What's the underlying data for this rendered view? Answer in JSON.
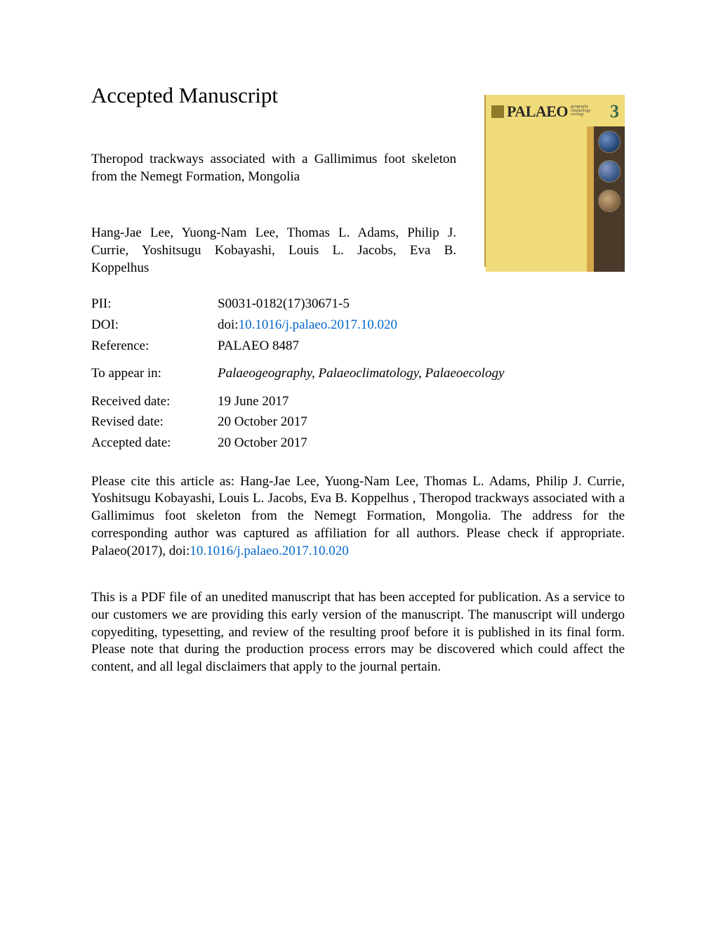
{
  "heading": "Accepted Manuscript",
  "article": {
    "title": "Theropod trackways associated with a Gallimimus foot skeleton from the Nemegt Formation, Mongolia",
    "authors": "Hang-Jae Lee, Yuong-Nam Lee, Thomas L. Adams, Philip J. Currie, Yoshitsugu Kobayashi, Louis L. Jacobs, Eva B. Koppelhus"
  },
  "cover": {
    "journal_label": "PALAEO",
    "sub1": "geography",
    "sub2": "climatology",
    "sub3": "ecology",
    "issue_number": "3"
  },
  "meta": {
    "pii_label": "PII:",
    "pii_value": "S0031-0182(17)30671-5",
    "doi_label": "DOI:",
    "doi_prefix": "doi:",
    "doi_link": "10.1016/j.palaeo.2017.10.020",
    "reference_label": "Reference:",
    "reference_value": "PALAEO 8487",
    "appear_label": "To appear in:",
    "appear_value": "Palaeogeography, Palaeoclimatology, Palaeoecology",
    "received_label": "Received date:",
    "received_value": "19 June 2017",
    "revised_label": "Revised date:",
    "revised_value": "20 October 2017",
    "accepted_label": "Accepted date:",
    "accepted_value": "20 October 2017"
  },
  "citation": {
    "prefix": "Please cite this article as: Hang-Jae Lee, Yuong-Nam Lee, Thomas L. Adams, Philip J. Currie, Yoshitsugu Kobayashi, Louis L. Jacobs, Eva B. Koppelhus , Theropod trackways associated with a Gallimimus foot skeleton from the Nemegt Formation, Mongolia. The address for the corresponding author was captured as affiliation for all authors. Please check if appropriate. Palaeo(2017), doi:",
    "doi_link": "10.1016/j.palaeo.2017.10.020"
  },
  "disclaimer": "This is a PDF file of an unedited manuscript that has been accepted for publication. As a service to our customers we are providing this early version of the manuscript. The manuscript will undergo copyediting, typesetting, and review of the resulting proof before it is published in its final form. Please note that during the production process errors may be discovered which could affect the content, and all legal disclaimers that apply to the journal pertain.",
  "colors": {
    "link": "#0066cc",
    "cover_bg": "#f0db7a",
    "cover_dark": "#4a3a2a",
    "cover_stripe": "#d4a84a"
  }
}
